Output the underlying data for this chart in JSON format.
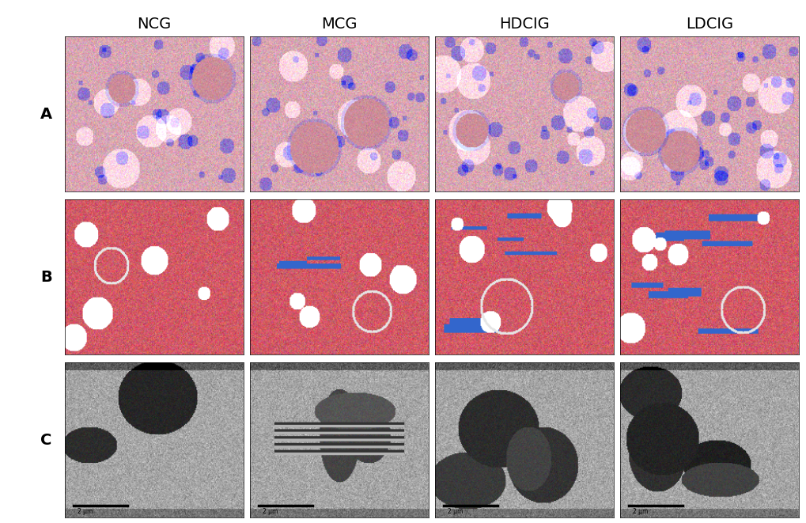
{
  "col_labels": [
    "NCG",
    "MCG",
    "HDCIG",
    "LDCIG"
  ],
  "row_labels": [
    "A",
    "B",
    "C"
  ],
  "col_label_fontsize": 14,
  "row_label_fontsize": 14,
  "background_color": "#ffffff",
  "border_color": "#000000",
  "scale_bar_text": "2 μm",
  "figure_width": 10.2,
  "figure_height": 6.61,
  "dpi": 100
}
